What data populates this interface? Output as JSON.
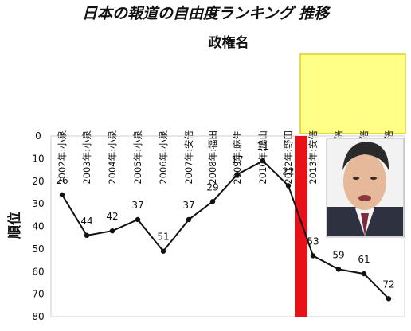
{
  "chart_data": {
    "type": "line",
    "title": "日本の報道の自由度ランキング 推移",
    "subtitle": "政権名",
    "ylabel": "順位",
    "ylim": [
      0,
      80
    ],
    "y_inverted": true,
    "yticks": [
      0,
      10,
      20,
      30,
      40,
      50,
      60,
      70,
      80
    ],
    "categories": [
      "2002年:小泉",
      "2003年:小泉",
      "2004年:小泉",
      "2005年:小泉",
      "2006年:小泉",
      "2007年:安倍",
      "2008年:福田",
      "2009年:麻生",
      "2010年:鳩山",
      "2012年:野田",
      "2013年:安倍",
      "2014年:安倍",
      "2015年:安倍",
      "2016年:安倍"
    ],
    "highlighted_categories": [
      "2013年:安倍",
      "2014年:安倍",
      "2015年:安倍",
      "2016年:安倍"
    ],
    "values": [
      26,
      44,
      42,
      37,
      51,
      37,
      29,
      17,
      11,
      22,
      53,
      59,
      61,
      72
    ],
    "grid": false,
    "divider_color": "#e8111a",
    "highlight_color": "#ffff88",
    "highlight_border_color": "#d4c200",
    "line_color": "#111111",
    "photo": "portrait-photo"
  }
}
